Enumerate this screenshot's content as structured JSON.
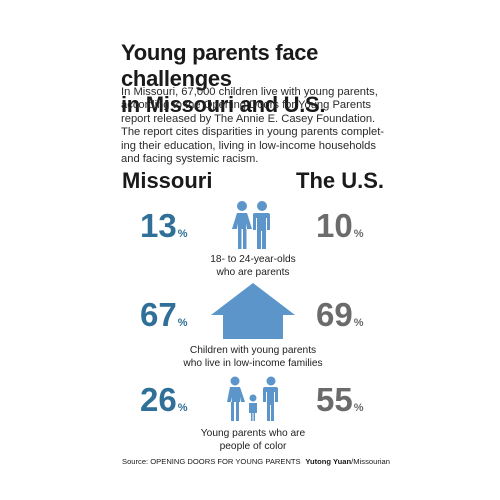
{
  "title_line1": "Young parents face challenges",
  "title_line2": "in Missouri and U.S.",
  "intro": [
    "In Missouri, 67,000 children live with young parents,",
    "according to the Opening Doors for Young Parents",
    "report released by The Annie E. Casey Foundation.",
    "The report cites disparities in young parents complet-",
    "ing their education, living in low-income households",
    "and facing systemic racism."
  ],
  "columns": {
    "left": "Missouri",
    "right": "The U.S."
  },
  "stats": [
    {
      "missouri": "13",
      "us": "10",
      "unit": "%",
      "caption": [
        "18- to 24-year-olds",
        "who are parents"
      ],
      "icon": "couple-icon"
    },
    {
      "missouri": "67",
      "us": "69",
      "unit": "%",
      "caption": [
        "Children with young parents",
        "who live in low-income families"
      ],
      "icon": "house-icon"
    },
    {
      "missouri": "26",
      "us": "55",
      "unit": "%",
      "caption": [
        "Young parents who are",
        "people of color"
      ],
      "icon": "family-icon"
    }
  ],
  "source": "Source: OPENING DOORS FOR YOUNG PARENTS",
  "credit_name": "Yutong Yuan",
  "credit_org": "/Missourian",
  "colors": {
    "missouri": "#2f6f98",
    "us": "#6b6b6b",
    "icon": "#5b95c9"
  }
}
